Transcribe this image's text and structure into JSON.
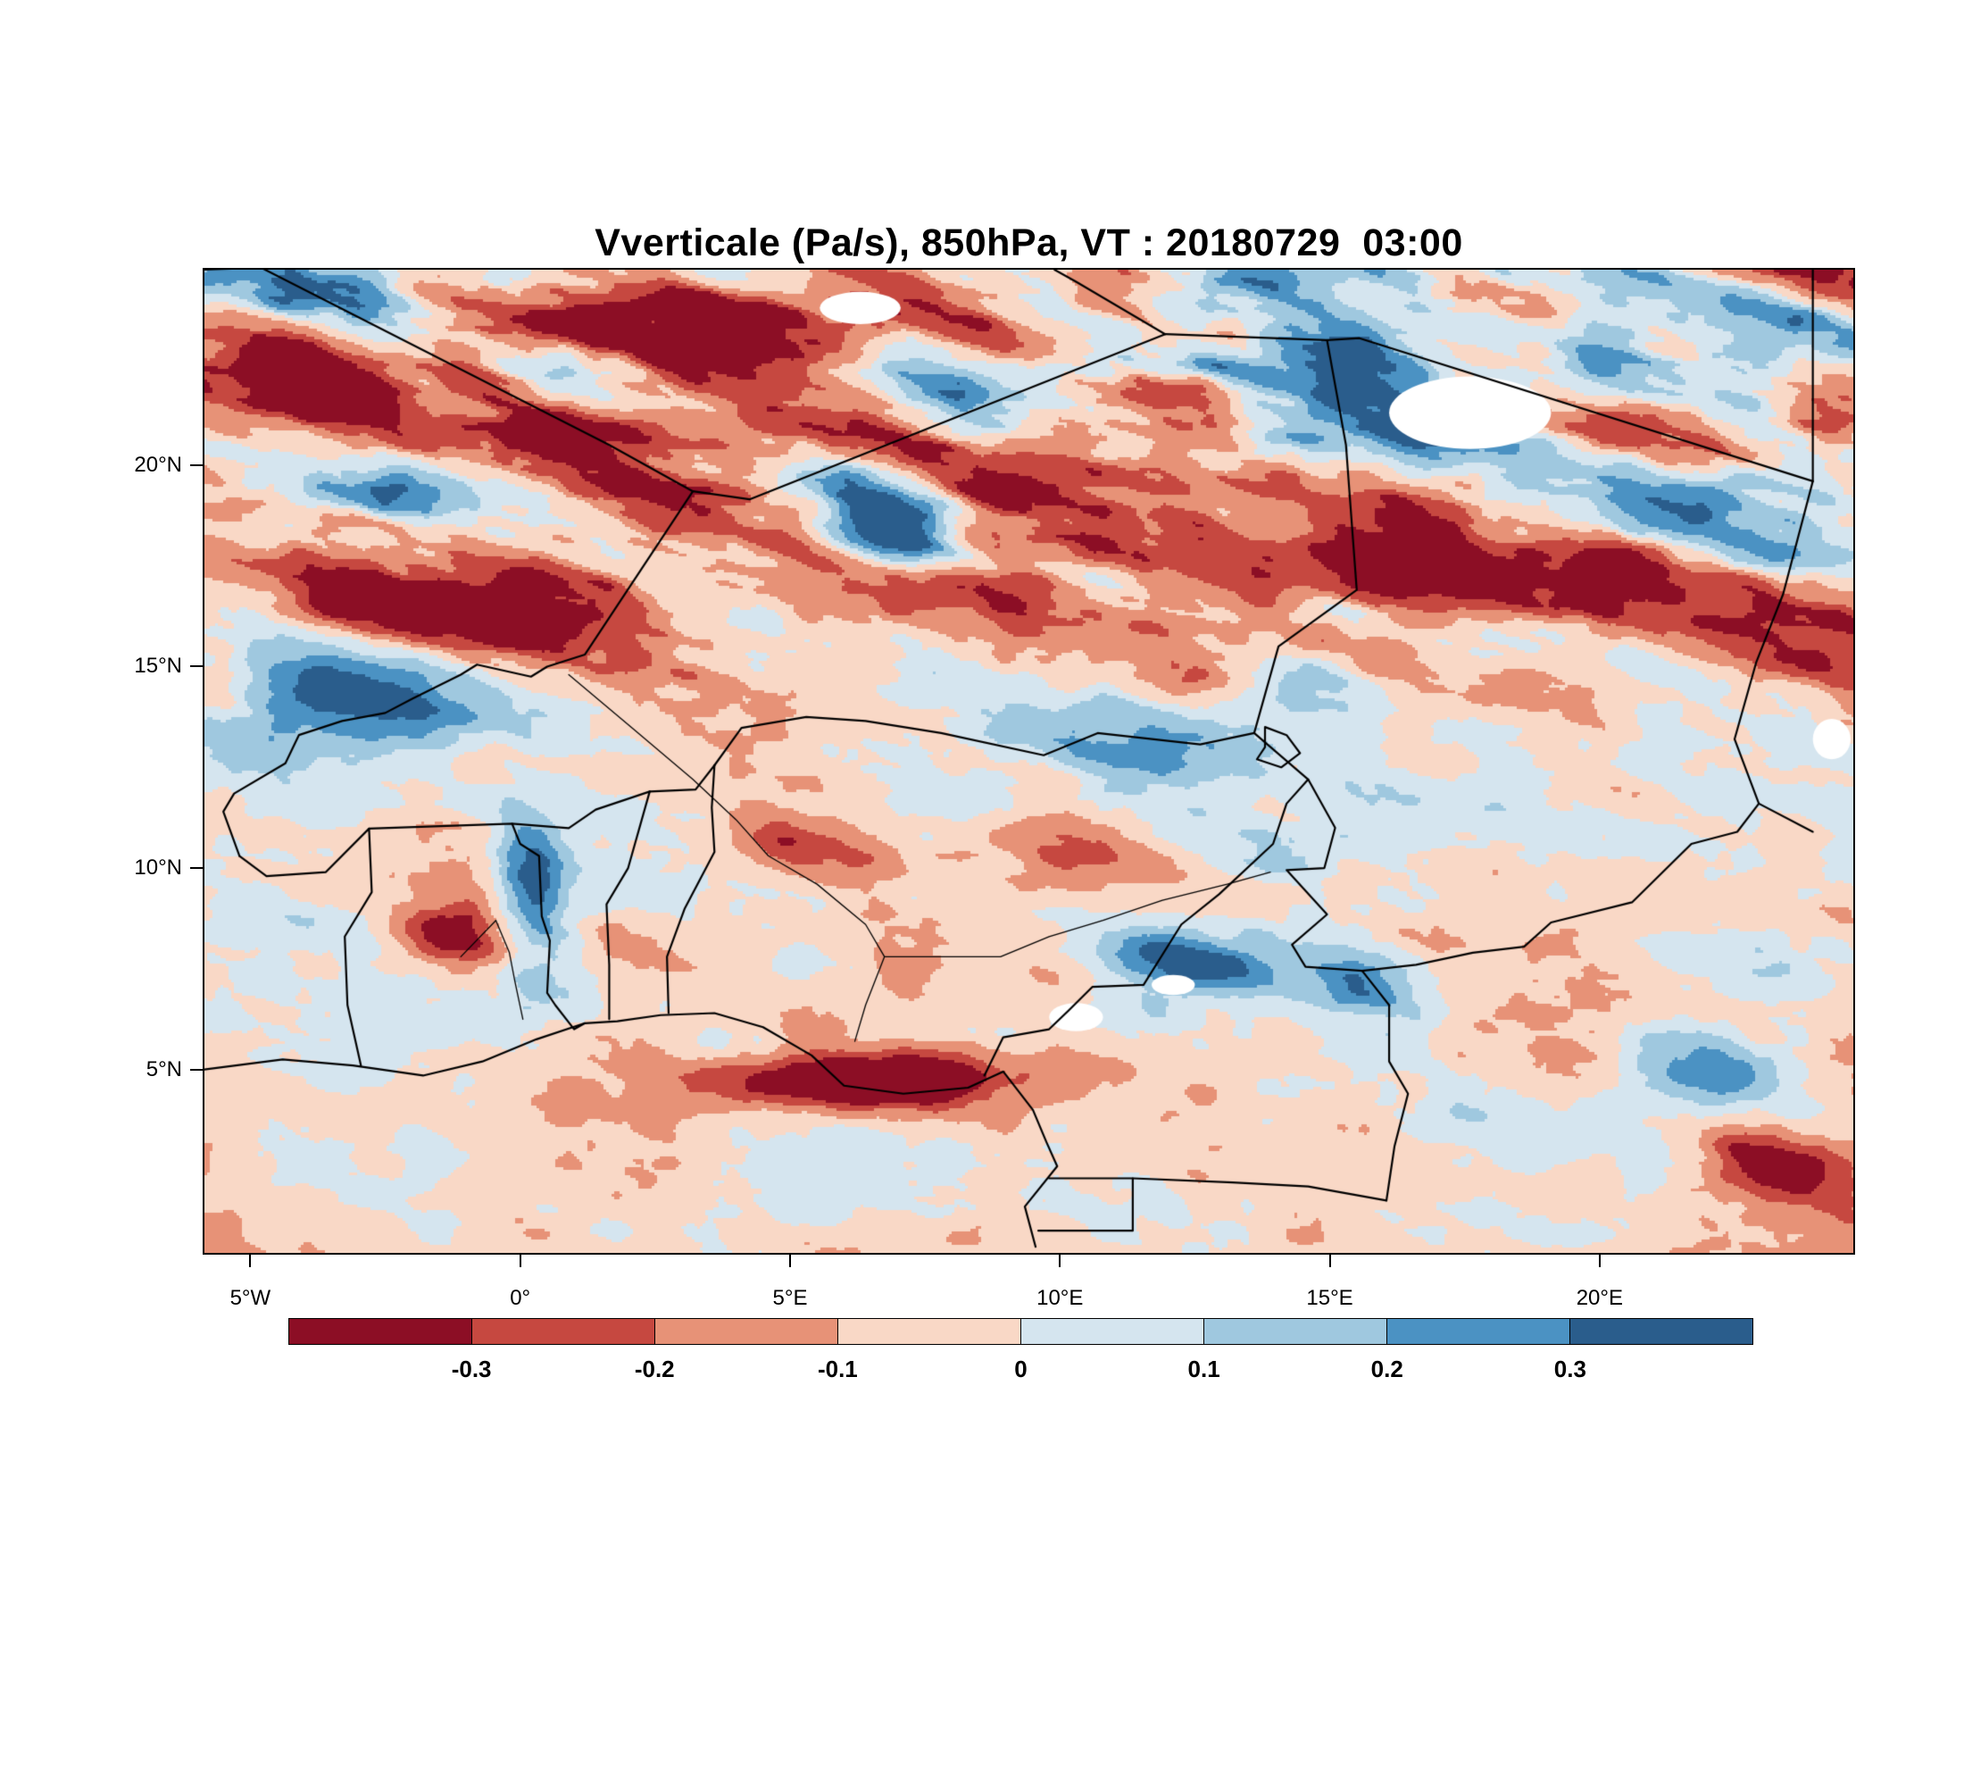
{
  "chart_data": {
    "type": "heatmap",
    "title": "Vverticale (Pa/s), 850hPa, VT : 20180729  03:00",
    "variable_name": "Vverticale",
    "units": "Pa/s",
    "pressure_level": "850hPa",
    "valid_time": "20180729 03:00",
    "x_axis": {
      "tick_labels": [
        "5°W",
        "0°",
        "5°E",
        "10°E",
        "15°E",
        "20°E"
      ],
      "tick_values_deg_east": [
        -5,
        0,
        5,
        10,
        15,
        20
      ]
    },
    "y_axis": {
      "tick_labels": [
        "5°N",
        "10°N",
        "15°N",
        "20°N"
      ],
      "tick_values_deg_north": [
        5,
        10,
        15,
        20
      ]
    },
    "lon_range_deg_east": [
      -5.85,
      24.7
    ],
    "lat_range_deg_north": [
      0.45,
      24.85
    ],
    "colorbar": {
      "boundary_labels": [
        "-0.3",
        "-0.2",
        "-0.1",
        "0",
        "0.1",
        "0.2",
        "0.3"
      ],
      "boundary_values": [
        -0.3,
        -0.2,
        -0.1,
        0,
        0.1,
        0.2,
        0.3
      ],
      "segment_colors": [
        "#8c0e25",
        "#c64840",
        "#e79277",
        "#f9d8c6",
        "#d5e5ef",
        "#9fc8df",
        "#4b92c3",
        "#2a5d8c"
      ],
      "missing_data_color": "#ffffff"
    },
    "map_overlays": {
      "line_color": "#000000",
      "borders_lonlat": [
        {
          "name": "coast-gulf-of-guinea",
          "pts": [
            [
              -5.85,
              5.0
            ],
            [
              -4.4,
              5.25
            ],
            [
              -3.1,
              5.1
            ],
            [
              -1.8,
              4.85
            ],
            [
              -0.7,
              5.2
            ],
            [
              0.3,
              5.75
            ],
            [
              1.2,
              6.15
            ],
            [
              1.8,
              6.2
            ],
            [
              2.6,
              6.35
            ],
            [
              3.6,
              6.4
            ],
            [
              4.5,
              6.05
            ],
            [
              5.4,
              5.35
            ],
            [
              6.0,
              4.6
            ],
            [
              7.1,
              4.4
            ],
            [
              8.3,
              4.55
            ],
            [
              8.95,
              4.95
            ],
            [
              9.5,
              4.0
            ],
            [
              9.75,
              3.2
            ],
            [
              9.95,
              2.6
            ],
            [
              9.35,
              1.6
            ],
            [
              9.55,
              0.6
            ]
          ]
        },
        {
          "name": "mali-algeria",
          "pts": [
            [
              -5.85,
              24.85
            ],
            [
              -4.8,
              24.9
            ],
            [
              1.65,
              20.5
            ],
            [
              3.2,
              19.35
            ]
          ]
        },
        {
          "name": "algeria-niger",
          "pts": [
            [
              3.2,
              19.35
            ],
            [
              4.25,
              19.15
            ],
            [
              11.95,
              23.25
            ]
          ]
        },
        {
          "name": "algeria-libya",
          "pts": [
            [
              11.95,
              23.25
            ],
            [
              10.3,
              24.55
            ],
            [
              9.9,
              24.85
            ]
          ]
        },
        {
          "name": "libya-chad",
          "pts": [
            [
              11.95,
              23.25
            ],
            [
              14.95,
              23.1
            ],
            [
              15.55,
              23.15
            ],
            [
              23.95,
              19.6
            ]
          ]
        },
        {
          "name": "libya-east-edge",
          "pts": [
            [
              23.95,
              24.85
            ],
            [
              23.95,
              19.6
            ]
          ]
        },
        {
          "name": "chad-sudan",
          "pts": [
            [
              23.95,
              19.6
            ],
            [
              23.4,
              16.8
            ],
            [
              22.9,
              15.1
            ],
            [
              22.5,
              13.2
            ],
            [
              22.95,
              11.6
            ],
            [
              23.95,
              10.9
            ]
          ]
        },
        {
          "name": "niger-mali-burkina",
          "pts": [
            [
              3.2,
              19.35
            ],
            [
              1.2,
              15.3
            ],
            [
              0.5,
              15.0
            ],
            [
              0.2,
              14.75
            ],
            [
              -0.8,
              15.05
            ],
            [
              -1.1,
              14.8
            ],
            [
              -2.0,
              14.2
            ],
            [
              -2.5,
              13.85
            ],
            [
              -3.3,
              13.65
            ],
            [
              -4.1,
              13.3
            ],
            [
              -4.35,
              12.6
            ],
            [
              -5.3,
              11.85
            ],
            [
              -5.5,
              11.4
            ],
            [
              -5.2,
              10.3
            ]
          ]
        },
        {
          "name": "cote-divoire-ghana",
          "pts": [
            [
              -5.2,
              10.3
            ],
            [
              -4.7,
              9.8
            ],
            [
              -3.6,
              9.9
            ],
            [
              -2.8,
              10.98
            ],
            [
              -2.75,
              9.4
            ],
            [
              -3.25,
              8.3
            ],
            [
              -3.2,
              6.6
            ],
            [
              -2.95,
              5.1
            ]
          ]
        },
        {
          "name": "burkina-south",
          "pts": [
            [
              -2.8,
              10.98
            ],
            [
              -0.15,
              11.1
            ],
            [
              0.9,
              10.99
            ],
            [
              1.4,
              11.45
            ],
            [
              2.4,
              11.9
            ]
          ]
        },
        {
          "name": "ghana-togo",
          "pts": [
            [
              -0.15,
              11.1
            ],
            [
              0.0,
              10.6
            ],
            [
              0.35,
              10.3
            ],
            [
              0.4,
              8.8
            ],
            [
              0.55,
              8.2
            ],
            [
              0.5,
              6.9
            ],
            [
              0.65,
              6.6
            ],
            [
              1.0,
              6.0
            ],
            [
              1.2,
              6.15
            ]
          ]
        },
        {
          "name": "togo-benin",
          "pts": [
            [
              1.65,
              6.25
            ],
            [
              1.65,
              7.6
            ],
            [
              1.6,
              9.1
            ],
            [
              2.0,
              10.0
            ],
            [
              2.4,
              11.9
            ]
          ]
        },
        {
          "name": "benin-niger-link",
          "pts": [
            [
              2.4,
              11.9
            ],
            [
              3.25,
              11.95
            ],
            [
              3.6,
              12.55
            ]
          ]
        },
        {
          "name": "benin-nigeria",
          "pts": [
            [
              2.75,
              6.4
            ],
            [
              2.72,
              7.8
            ],
            [
              3.05,
              9.0
            ],
            [
              3.6,
              10.4
            ],
            [
              3.55,
              11.5
            ],
            [
              3.6,
              12.55
            ]
          ]
        },
        {
          "name": "niger-nigeria",
          "pts": [
            [
              3.6,
              12.55
            ],
            [
              4.1,
              13.48
            ],
            [
              5.3,
              13.75
            ],
            [
              6.4,
              13.65
            ],
            [
              7.8,
              13.35
            ],
            [
              9.7,
              12.8
            ],
            [
              10.7,
              13.35
            ],
            [
              12.6,
              13.07
            ],
            [
              13.6,
              13.35
            ]
          ]
        },
        {
          "name": "niger-chad",
          "pts": [
            [
              13.6,
              13.35
            ],
            [
              14.05,
              15.5
            ],
            [
              15.5,
              16.9
            ],
            [
              15.3,
              20.5
            ],
            [
              14.95,
              23.1
            ]
          ]
        },
        {
          "name": "nigeria-cameroon",
          "pts": [
            [
              13.6,
              13.35
            ],
            [
              14.6,
              12.2
            ],
            [
              14.2,
              11.6
            ],
            [
              13.95,
              10.6
            ],
            [
              12.95,
              9.35
            ],
            [
              12.25,
              8.6
            ],
            [
              11.55,
              7.1
            ],
            [
              10.6,
              7.05
            ],
            [
              10.15,
              6.45
            ],
            [
              9.8,
              6.0
            ],
            [
              8.95,
              5.8
            ],
            [
              8.6,
              4.85
            ]
          ]
        },
        {
          "name": "chad-cameroon",
          "pts": [
            [
              14.6,
              12.2
            ],
            [
              15.1,
              11.0
            ],
            [
              14.9,
              10.0
            ],
            [
              14.2,
              9.95
            ],
            [
              14.95,
              8.85
            ],
            [
              14.3,
              8.1
            ],
            [
              14.55,
              7.55
            ],
            [
              15.6,
              7.45
            ]
          ]
        },
        {
          "name": "chad-car",
          "pts": [
            [
              15.6,
              7.45
            ],
            [
              16.6,
              7.6
            ],
            [
              17.65,
              7.9
            ],
            [
              18.6,
              8.05
            ],
            [
              19.1,
              8.65
            ],
            [
              20.6,
              9.15
            ],
            [
              21.7,
              10.6
            ],
            [
              22.55,
              10.9
            ],
            [
              22.95,
              11.6
            ]
          ]
        },
        {
          "name": "cameroon-car",
          "pts": [
            [
              15.6,
              7.45
            ],
            [
              16.1,
              6.6
            ],
            [
              16.1,
              5.2
            ],
            [
              16.45,
              4.4
            ],
            [
              16.2,
              3.1
            ],
            [
              16.1,
              2.2
            ],
            [
              16.05,
              1.75
            ]
          ]
        },
        {
          "name": "cameroon-congo-south",
          "pts": [
            [
              11.35,
              2.3
            ],
            [
              13.2,
              2.2
            ],
            [
              14.6,
              2.1
            ],
            [
              16.05,
              1.75
            ]
          ]
        },
        {
          "name": "equatorial-guinea",
          "pts": [
            [
              9.8,
              2.3
            ],
            [
              11.35,
              2.3
            ],
            [
              11.35,
              1.0
            ],
            [
              9.6,
              1.0
            ]
          ]
        },
        {
          "name": "lake-chad-shore",
          "pts": [
            [
              13.8,
              13.5
            ],
            [
              14.2,
              13.3
            ],
            [
              14.45,
              12.85
            ],
            [
              14.1,
              12.5
            ],
            [
              13.65,
              12.7
            ],
            [
              13.8,
              13.0
            ],
            [
              13.8,
              13.5
            ]
          ]
        }
      ],
      "rivers_lonlat": [
        {
          "name": "niger-river",
          "pts": [
            [
              0.9,
              14.8
            ],
            [
              2.1,
              13.45
            ],
            [
              3.2,
              12.2
            ],
            [
              4.0,
              11.2
            ],
            [
              4.6,
              10.3
            ],
            [
              5.5,
              9.6
            ],
            [
              6.4,
              8.6
            ],
            [
              6.75,
              7.8
            ],
            [
              6.4,
              6.6
            ],
            [
              6.2,
              5.7
            ]
          ]
        },
        {
          "name": "benue-river",
          "pts": [
            [
              6.75,
              7.8
            ],
            [
              7.8,
              7.8
            ],
            [
              8.9,
              7.8
            ],
            [
              9.8,
              8.3
            ],
            [
              10.8,
              8.7
            ],
            [
              11.9,
              9.2
            ],
            [
              13.1,
              9.6
            ],
            [
              13.9,
              9.9
            ]
          ]
        },
        {
          "name": "lake-volta",
          "pts": [
            [
              -0.45,
              8.7
            ],
            [
              -0.2,
              7.9
            ],
            [
              -0.1,
              7.2
            ],
            [
              0.05,
              6.25
            ]
          ]
        },
        {
          "name": "lake-volta-arm",
          "pts": [
            [
              -0.45,
              8.7
            ],
            [
              -1.1,
              7.8
            ]
          ]
        }
      ],
      "masked_white_regions": [
        {
          "lon": 6.3,
          "lat": 23.9,
          "rx": 0.75,
          "ry": 0.4
        },
        {
          "lon": 17.6,
          "lat": 21.3,
          "rx": 1.5,
          "ry": 0.9
        },
        {
          "lon": 10.3,
          "lat": 6.3,
          "rx": 0.5,
          "ry": 0.35
        },
        {
          "lon": 12.1,
          "lat": 7.1,
          "rx": 0.4,
          "ry": 0.25
        },
        {
          "lon": 24.3,
          "lat": 13.2,
          "rx": 0.35,
          "ry": 0.5
        }
      ]
    }
  }
}
